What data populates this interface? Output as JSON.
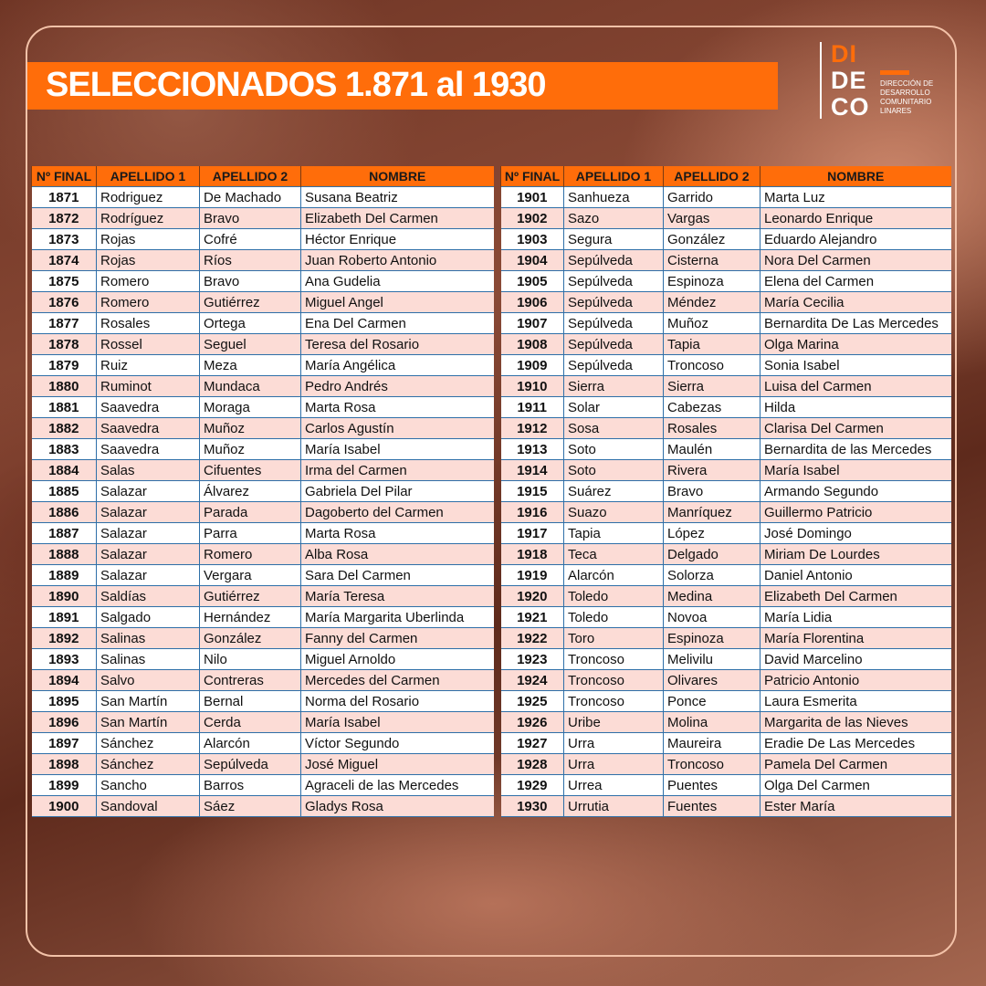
{
  "title": "SELECCIONADOS 1.871 al 1930",
  "logo": {
    "line1": "DI",
    "line2": "DE",
    "line3": "CO",
    "subtitle": [
      "DIRECCIÓN DE",
      "DESARROLLO",
      "COMUNITARIO",
      "LINARES"
    ],
    "accent": "#ff6d0a"
  },
  "colors": {
    "header": "#ff6d0a",
    "alt_row": "#fcdcd6",
    "border": "#2e6fa8"
  },
  "columns": [
    "Nº FINAL",
    "APELLIDO 1",
    "APELLIDO 2",
    "NOMBRE"
  ],
  "left_table": [
    [
      "1871",
      "Rodriguez",
      "De Machado",
      "Susana Beatriz"
    ],
    [
      "1872",
      "Rodríguez",
      "Bravo",
      "Elizabeth Del Carmen"
    ],
    [
      "1873",
      "Rojas",
      "Cofré",
      "Héctor Enrique"
    ],
    [
      "1874",
      "Rojas",
      "Ríos",
      "Juan Roberto Antonio"
    ],
    [
      "1875",
      "Romero",
      "Bravo",
      "Ana Gudelia"
    ],
    [
      "1876",
      "Romero",
      "Gutiérrez",
      "Miguel Angel"
    ],
    [
      "1877",
      "Rosales",
      "Ortega",
      "Ena Del Carmen"
    ],
    [
      "1878",
      "Rossel",
      "Seguel",
      "Teresa del Rosario"
    ],
    [
      "1879",
      "Ruiz",
      "Meza",
      "María Angélica"
    ],
    [
      "1880",
      "Ruminot",
      "Mundaca",
      "Pedro Andrés"
    ],
    [
      "1881",
      "Saavedra",
      "Moraga",
      "Marta Rosa"
    ],
    [
      "1882",
      "Saavedra",
      "Muñoz",
      "Carlos Agustín"
    ],
    [
      "1883",
      "Saavedra",
      "Muñoz",
      "María Isabel"
    ],
    [
      "1884",
      "Salas",
      "Cifuentes",
      "Irma del Carmen"
    ],
    [
      "1885",
      "Salazar",
      "Álvarez",
      "Gabriela Del Pilar"
    ],
    [
      "1886",
      "Salazar",
      "Parada",
      "Dagoberto del Carmen"
    ],
    [
      "1887",
      "Salazar",
      "Parra",
      "Marta Rosa"
    ],
    [
      "1888",
      "Salazar",
      "Romero",
      "Alba Rosa"
    ],
    [
      "1889",
      "Salazar",
      "Vergara",
      "Sara Del Carmen"
    ],
    [
      "1890",
      "Saldías",
      "Gutiérrez",
      "María Teresa"
    ],
    [
      "1891",
      "Salgado",
      "Hernández",
      "María Margarita Uberlinda"
    ],
    [
      "1892",
      "Salinas",
      "González",
      "Fanny del Carmen"
    ],
    [
      "1893",
      "Salinas",
      "Nilo",
      "Miguel Arnoldo"
    ],
    [
      "1894",
      "Salvo",
      "Contreras",
      "Mercedes del Carmen"
    ],
    [
      "1895",
      "San Martín",
      "Bernal",
      "Norma del Rosario"
    ],
    [
      "1896",
      "San Martín",
      "Cerda",
      "María Isabel"
    ],
    [
      "1897",
      "Sánchez",
      "Alarcón",
      "Víctor Segundo"
    ],
    [
      "1898",
      "Sánchez",
      "Sepúlveda",
      "José Miguel"
    ],
    [
      "1899",
      "Sancho",
      "Barros",
      "Agraceli de las Mercedes"
    ],
    [
      "1900",
      "Sandoval",
      "Sáez",
      "Gladys Rosa"
    ]
  ],
  "right_table": [
    [
      "1901",
      "Sanhueza",
      "Garrido",
      "Marta Luz"
    ],
    [
      "1902",
      "Sazo",
      "Vargas",
      "Leonardo Enrique"
    ],
    [
      "1903",
      "Segura",
      "González",
      "Eduardo Alejandro"
    ],
    [
      "1904",
      "Sepúlveda",
      "Cisterna",
      "Nora Del Carmen"
    ],
    [
      "1905",
      "Sepúlveda",
      "Espinoza",
      "Elena del Carmen"
    ],
    [
      "1906",
      "Sepúlveda",
      "Méndez",
      "María Cecilia"
    ],
    [
      "1907",
      "Sepúlveda",
      "Muñoz",
      "Bernardita De Las Mercedes"
    ],
    [
      "1908",
      "Sepúlveda",
      "Tapia",
      "Olga Marina"
    ],
    [
      "1909",
      "Sepúlveda",
      "Troncoso",
      "Sonia Isabel"
    ],
    [
      "1910",
      "Sierra",
      "Sierra",
      "Luisa del Carmen"
    ],
    [
      "1911",
      "Solar",
      "Cabezas",
      "Hilda"
    ],
    [
      "1912",
      "Sosa",
      "Rosales",
      "Clarisa Del Carmen"
    ],
    [
      "1913",
      "Soto",
      "Maulén",
      "Bernardita de las Mercedes"
    ],
    [
      "1914",
      "Soto",
      "Rivera",
      "María Isabel"
    ],
    [
      "1915",
      "Suárez",
      "Bravo",
      "Armando Segundo"
    ],
    [
      "1916",
      "Suazo",
      "Manríquez",
      "Guillermo Patricio"
    ],
    [
      "1917",
      "Tapia",
      "López",
      "José Domingo"
    ],
    [
      "1918",
      "Teca",
      "Delgado",
      "Miriam De Lourdes"
    ],
    [
      "1919",
      "Alarcón",
      "Solorza",
      "Daniel Antonio"
    ],
    [
      "1920",
      "Toledo",
      "Medina",
      "Elizabeth Del Carmen"
    ],
    [
      "1921",
      "Toledo",
      "Novoa",
      "María Lidia"
    ],
    [
      "1922",
      "Toro",
      "Espinoza",
      "María Florentina"
    ],
    [
      "1923",
      "Troncoso",
      "Melivilu",
      "David Marcelino"
    ],
    [
      "1924",
      "Troncoso",
      "Olivares",
      "Patricio Antonio"
    ],
    [
      "1925",
      "Troncoso",
      "Ponce",
      "Laura Esmerita"
    ],
    [
      "1926",
      "Uribe",
      "Molina",
      "Margarita de las Nieves"
    ],
    [
      "1927",
      "Urra",
      "Maureira",
      "Eradie De Las Mercedes"
    ],
    [
      "1928",
      "Urra",
      "Troncoso",
      "Pamela Del Carmen"
    ],
    [
      "1929",
      "Urrea",
      "Puentes",
      "Olga Del Carmen"
    ],
    [
      "1930",
      "Urrutia",
      "Fuentes",
      "Ester María"
    ]
  ]
}
